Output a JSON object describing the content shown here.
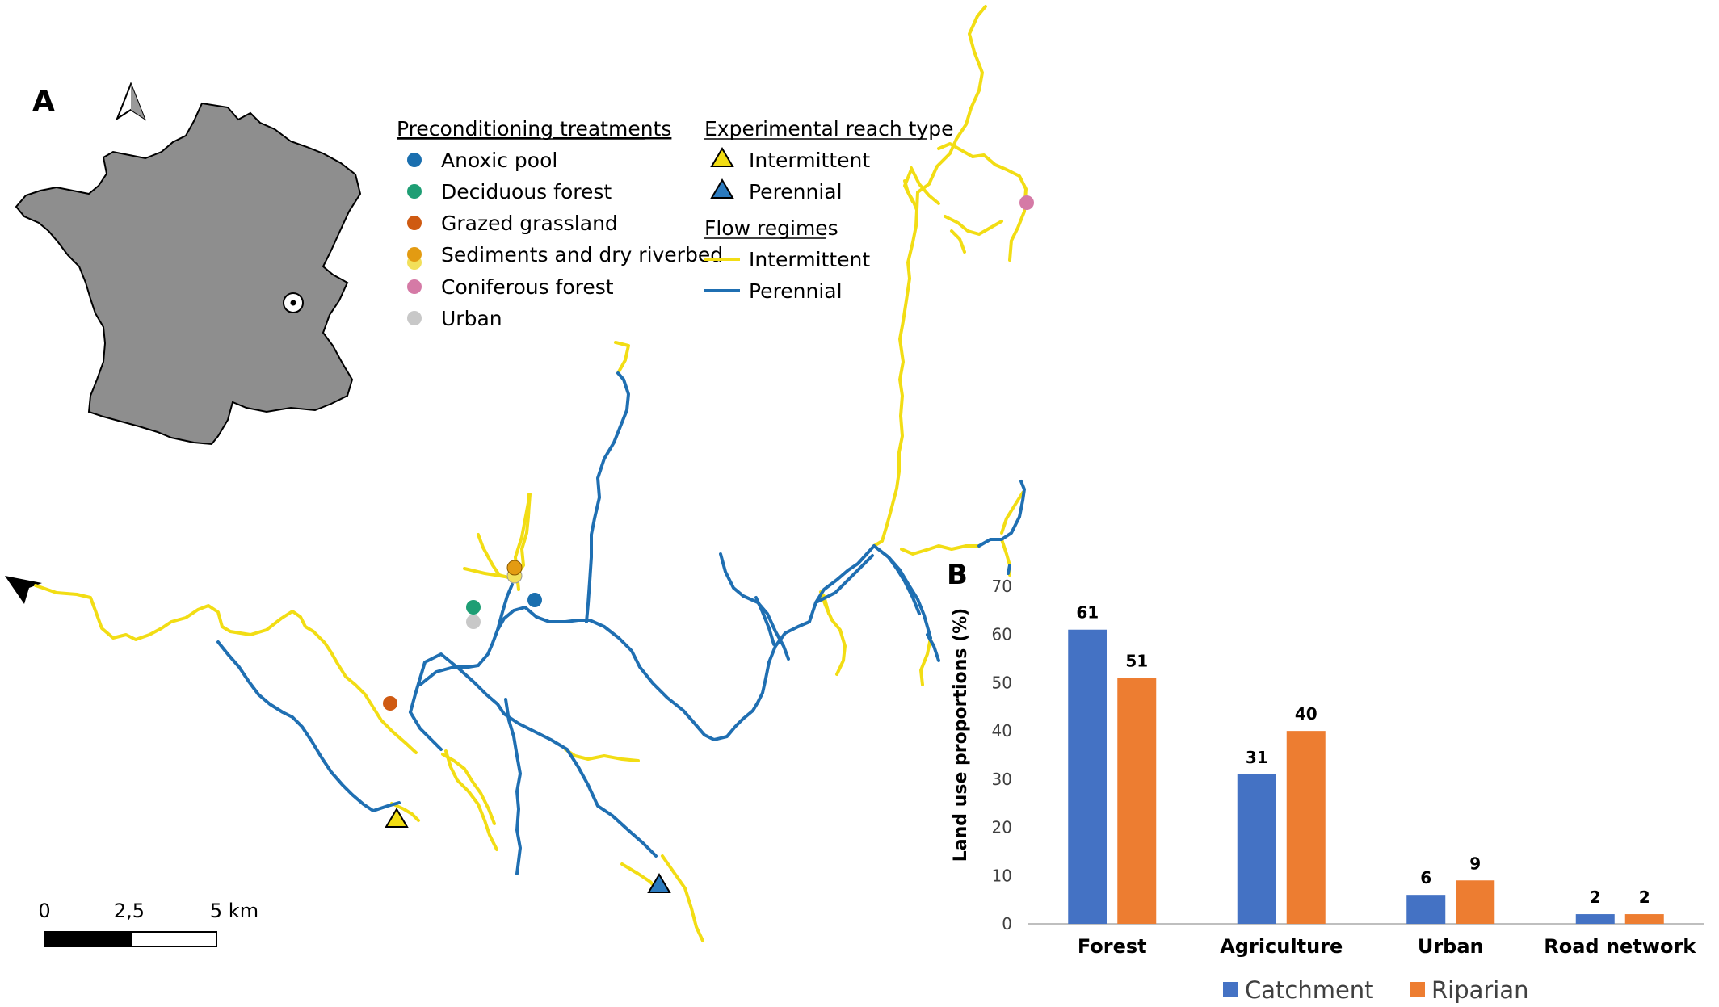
{
  "panel_labels": {
    "a": "A",
    "b": "B"
  },
  "colors": {
    "intermittent": "#f2dd14",
    "perennial": "#1f6fb2",
    "france_fill": "#8e8e8e",
    "anoxic_pool": "#1a6faf",
    "deciduous_forest": "#1e9e74",
    "grazed_grassland": "#cf5a12",
    "sediments": "#e39b12",
    "sediments_light": "#f2e05a",
    "coniferous_forest": "#d57aa6",
    "urban": "#c8c8c8",
    "catchment": "#4472c4",
    "riparian": "#ed7d31"
  },
  "icons": {
    "north_arrow": "north-arrow-icon",
    "flow_direction": "flow-direction-arrow-icon",
    "location_marker": "site-location-marker-icon"
  },
  "legend": {
    "preconditioning": {
      "title": "Preconditioning treatments",
      "items": [
        {
          "label": "Anoxic pool",
          "color": "#1a6faf"
        },
        {
          "label": "Deciduous forest",
          "color": "#1e9e74"
        },
        {
          "label": "Grazed grassland",
          "color": "#cf5a12"
        },
        {
          "label": "Sediments and dry riverbed",
          "color": "#e39b12",
          "second_color": "#f2e05a"
        },
        {
          "label": "Coniferous forest",
          "color": "#d57aa6"
        },
        {
          "label": "Urban",
          "color": "#c8c8c8"
        }
      ]
    },
    "reach_type": {
      "title": "Experimental reach type",
      "items": [
        {
          "label": "Intermittent",
          "color": "#f2dd14"
        },
        {
          "label": "Perennial",
          "color": "#2c7bbf"
        }
      ]
    },
    "flow_regimes": {
      "title": "Flow regimes",
      "items": [
        {
          "label": "Intermittent",
          "color": "#f2dd14"
        },
        {
          "label": "Perennial",
          "color": "#1f6fb2"
        }
      ]
    }
  },
  "scale_bar": {
    "labels": [
      "0",
      "2,5",
      "5 km"
    ]
  },
  "chart_data": {
    "type": "bar",
    "categories": [
      "Forest",
      "Agriculture",
      "Urban",
      "Road network"
    ],
    "series": [
      {
        "name": "Catchment",
        "values": [
          61,
          31,
          6,
          2
        ],
        "color": "#4472c4"
      },
      {
        "name": "Riparian",
        "values": [
          51,
          40,
          9,
          2
        ],
        "color": "#ed7d31"
      }
    ],
    "ylabel": "Land use proportions (%)",
    "ylim": [
      0,
      70
    ],
    "yticks": [
      0,
      10,
      20,
      30,
      40,
      50,
      60,
      70
    ],
    "data_labels": true,
    "grid": false,
    "legend": "bottom"
  }
}
